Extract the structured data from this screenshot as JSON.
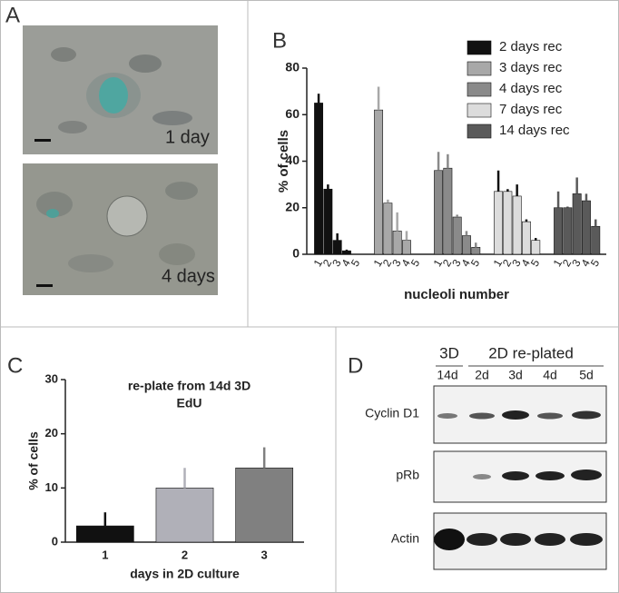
{
  "panel_labels": [
    "A",
    "B",
    "C",
    "D"
  ],
  "micrographs": [
    "1 day",
    "4 days"
  ],
  "blot": {
    "group_labels": [
      "3D",
      "2D re-plated"
    ],
    "lanes": [
      "14d",
      "2d",
      "3d",
      "4d",
      "5d"
    ],
    "rows": [
      "Cyclin D1",
      "pRb",
      "Actin"
    ]
  },
  "chart_data": [
    {
      "type": "bar",
      "y_label": "% of cells",
      "x_label": "nucleoli number",
      "categories": [
        "1",
        "2",
        "3",
        "4",
        "5"
      ],
      "series": [
        {
          "name": "2 days rec",
          "color": "#111111",
          "values": [
            65,
            28,
            6,
            1.5,
            0
          ],
          "errors": [
            4,
            2,
            3,
            0.5,
            0
          ]
        },
        {
          "name": "3 days rec",
          "color": "#a8a8a8",
          "values": [
            62,
            22,
            10,
            6,
            0
          ],
          "errors": [
            10,
            1.5,
            8,
            4,
            0
          ]
        },
        {
          "name": "4 days rec",
          "color": "#8a8a8a",
          "values": [
            36,
            37,
            16,
            8,
            3
          ],
          "errors": [
            8,
            6,
            1,
            2,
            2
          ]
        },
        {
          "name": "7 days rec",
          "color": "#dcdcdc",
          "values": [
            27,
            27,
            25,
            14,
            6
          ],
          "errors": [
            9,
            1,
            5,
            1,
            1
          ]
        },
        {
          "name": "14 days rec",
          "color": "#5a5a5a",
          "values": [
            20,
            20,
            26,
            23,
            12
          ],
          "errors": [
            7,
            0.5,
            7,
            3,
            3
          ]
        }
      ],
      "ylim": [
        0,
        80
      ],
      "yticks": [
        0,
        20,
        40,
        60,
        80
      ],
      "legend": "upper right"
    },
    {
      "type": "bar",
      "title": "re-plate from 14d 3D",
      "subtitle": "EdU",
      "y_label": "% of cells",
      "x_label": "days in 2D culture",
      "categories": [
        "1",
        "2",
        "3"
      ],
      "values": [
        3,
        10,
        13.7
      ],
      "errors": [
        2.5,
        3.7,
        3.8
      ],
      "colors": [
        "#111111",
        "#b0b0b8",
        "#808080"
      ],
      "ylim": [
        0,
        30
      ],
      "yticks": [
        0,
        10,
        20,
        30
      ]
    }
  ]
}
